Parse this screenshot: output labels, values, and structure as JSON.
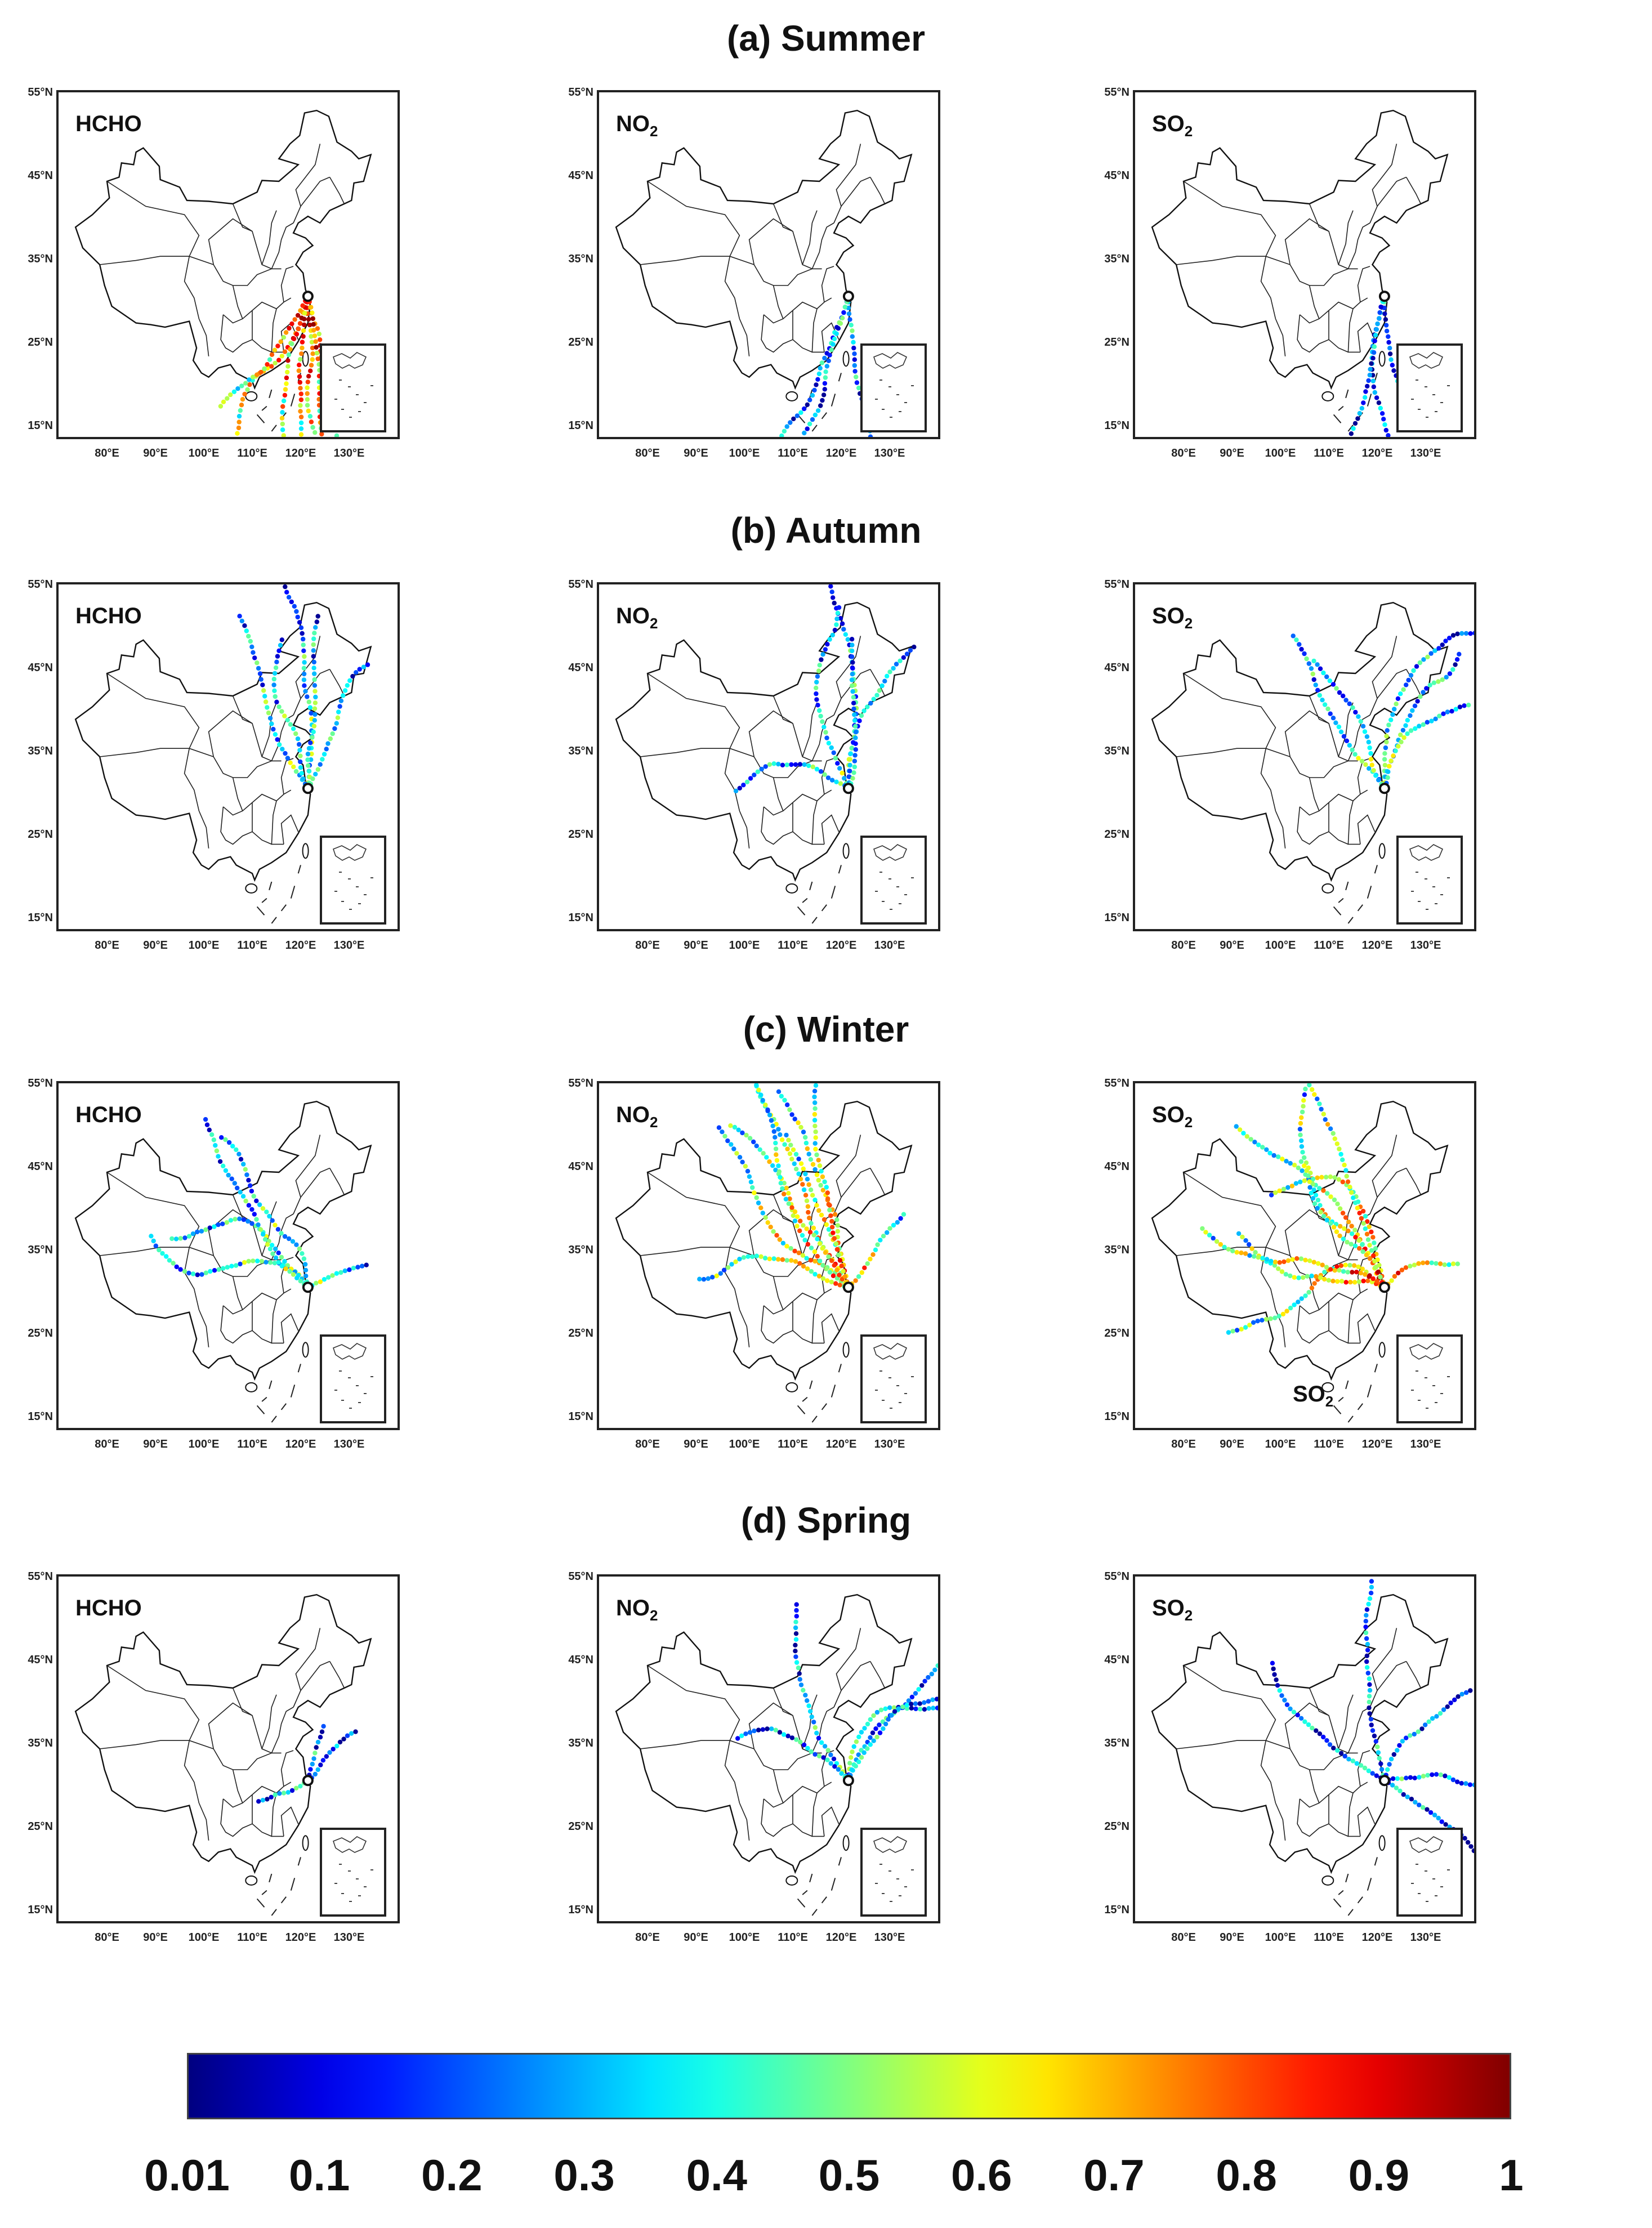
{
  "figure": {
    "lat_ticks": [
      "55°N",
      "45°N",
      "35°N",
      "25°N",
      "15°N"
    ],
    "lon_ticks": [
      "80°E",
      "90°E",
      "100°E",
      "110°E",
      "120°E",
      "130°E"
    ],
    "colorbar": {
      "ticks": [
        "0.01",
        "0.1",
        "0.2",
        "0.3",
        "0.4",
        "0.5",
        "0.6",
        "0.7",
        "0.8",
        "0.9",
        "1"
      ],
      "colormap": "jet",
      "min": 0.01,
      "max": 1
    },
    "extra_label": {
      "base": "SO",
      "sub": "2"
    }
  },
  "seasons": [
    {
      "title": "(a) Summer",
      "panels": [
        {
          "species": "HCHO",
          "sub": "",
          "intensity": 0.85,
          "trajectory_density": "dense, southerly"
        },
        {
          "species": "NO",
          "sub": "2",
          "intensity": 0.3,
          "trajectory_density": "sparse, southerly"
        },
        {
          "species": "SO",
          "sub": "2",
          "intensity": 0.25,
          "trajectory_density": "sparse, southerly"
        }
      ]
    },
    {
      "title": "(b) Autumn",
      "panels": [
        {
          "species": "HCHO",
          "sub": "",
          "intensity": 0.45,
          "trajectory_density": "moderate, northerly"
        },
        {
          "species": "NO",
          "sub": "2",
          "intensity": 0.4,
          "trajectory_density": "moderate, northerly"
        },
        {
          "species": "SO",
          "sub": "2",
          "intensity": 0.45,
          "trajectory_density": "moderate, northerly"
        }
      ]
    },
    {
      "title": "(c) Winter",
      "panels": [
        {
          "species": "HCHO",
          "sub": "",
          "intensity": 0.45,
          "trajectory_density": "moderate, northwesterly"
        },
        {
          "species": "NO",
          "sub": "2",
          "intensity": 0.7,
          "trajectory_density": "dense, northwesterly"
        },
        {
          "species": "SO",
          "sub": "2",
          "intensity": 0.75,
          "trajectory_density": "dense, northwesterly"
        }
      ]
    },
    {
      "title": "(d) Spring",
      "panels": [
        {
          "species": "HCHO",
          "sub": "",
          "intensity": 0.3,
          "trajectory_density": "sparse, local"
        },
        {
          "species": "NO",
          "sub": "2",
          "intensity": 0.35,
          "trajectory_density": "moderate, northerly"
        },
        {
          "species": "SO",
          "sub": "2",
          "intensity": 0.3,
          "trajectory_density": "moderate, mixed"
        }
      ]
    }
  ]
}
